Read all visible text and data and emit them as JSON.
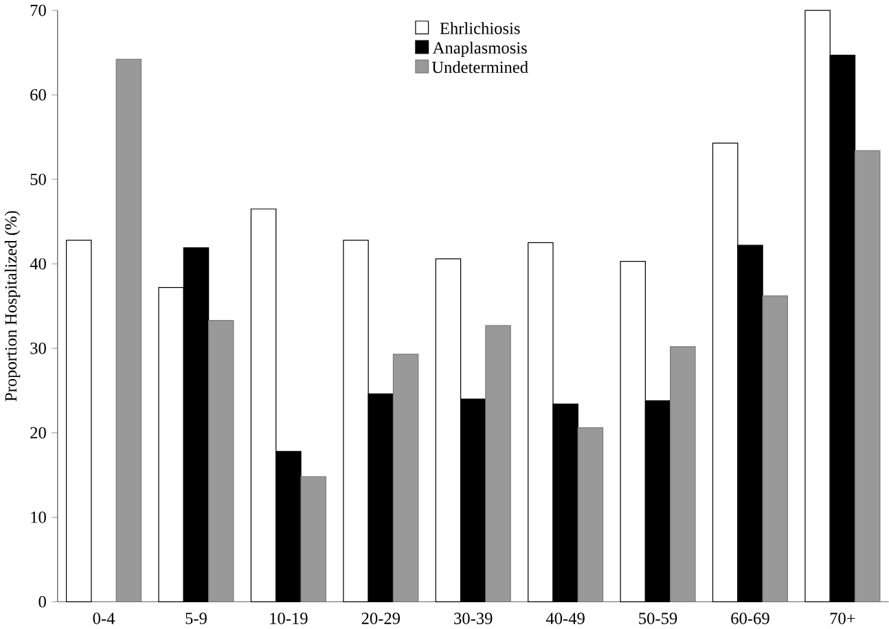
{
  "chart_data": {
    "type": "bar",
    "ylabel": "Proportion Hospitalized (%)",
    "categories": [
      "0-4",
      "5-9",
      "10-19",
      "20-29",
      "30-39",
      "40-49",
      "50-59",
      "60-69",
      "70+"
    ],
    "series": [
      {
        "name": "Ehrlichiosis",
        "color": "#ffffff",
        "values": [
          42.8,
          37.2,
          46.5,
          42.8,
          40.6,
          42.5,
          40.3,
          54.3,
          70.0
        ]
      },
      {
        "name": "Anaplasmosis",
        "color": "#000000",
        "values": [
          null,
          41.9,
          17.8,
          24.6,
          24.0,
          23.4,
          23.8,
          42.2,
          64.7
        ]
      },
      {
        "name": "Undetermined",
        "color": "#999999",
        "values": [
          64.2,
          33.3,
          14.8,
          29.3,
          32.7,
          20.6,
          30.2,
          36.2,
          53.4
        ]
      }
    ],
    "ylim": [
      0,
      70
    ],
    "yticks": [
      0,
      10,
      20,
      30,
      40,
      50,
      60,
      70
    ],
    "grid": false,
    "legend": "top"
  }
}
